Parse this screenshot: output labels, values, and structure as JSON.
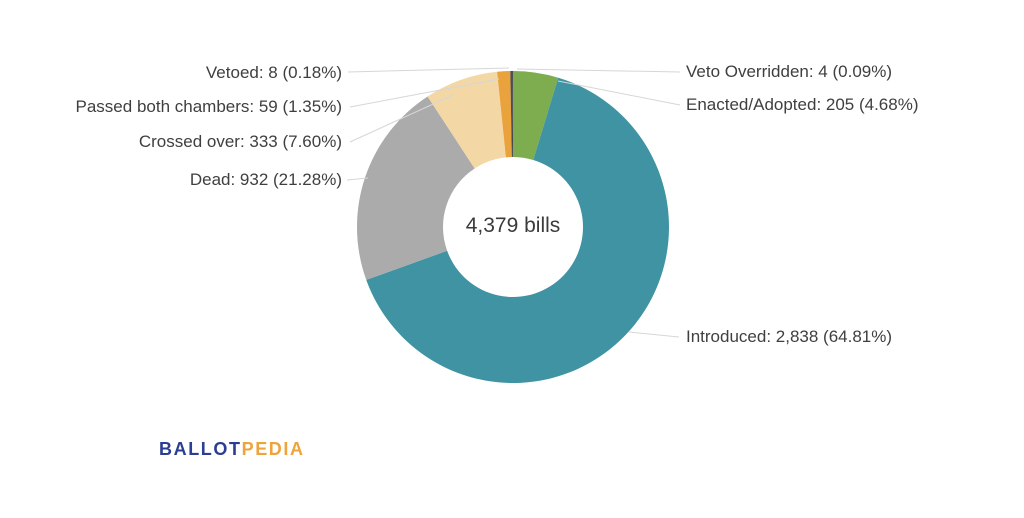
{
  "chart_data": {
    "type": "pie",
    "subtype": "donut",
    "title": "",
    "center_label": "4,379 bills",
    "total_bills": 4379,
    "legend_position": "callout-labels",
    "background_color": "#ffffff",
    "leader_line_color": "#d6d6d6",
    "label_text_color": "#3f3f3f",
    "series": [
      {
        "name": "Enacted/Adopted",
        "value": 205,
        "pct": 4.68,
        "display": "Enacted/Adopted: 205 (4.68%)",
        "color": "#7dad4f"
      },
      {
        "name": "Introduced",
        "value": 2838,
        "pct": 64.81,
        "display": "Introduced: 2,838 (64.81%)",
        "color": "#3f93a3"
      },
      {
        "name": "Dead",
        "value": 932,
        "pct": 21.28,
        "display": "Dead: 932 (21.28%)",
        "color": "#ababab"
      },
      {
        "name": "Crossed over",
        "value": 333,
        "pct": 7.6,
        "display": "Crossed over: 333 (7.60%)",
        "color": "#f3d8a6"
      },
      {
        "name": "Passed both chambers",
        "value": 59,
        "pct": 1.35,
        "display": "Passed both chambers: 59 (1.35%)",
        "color": "#e9a23c"
      },
      {
        "name": "Vetoed",
        "value": 8,
        "pct": 0.18,
        "display": "Vetoed: 8 (0.18%)",
        "color": "#4c4f57"
      },
      {
        "name": "Veto Overridden",
        "value": 4,
        "pct": 0.09,
        "display": "Veto Overridden: 4 (0.09%)",
        "color": "#3b3e46"
      }
    ]
  },
  "branding": {
    "logo_part1": "BALLOT",
    "logo_part2": "PEDIA",
    "logo_color1": "#2b3e92",
    "logo_color2": "#efa33d"
  }
}
